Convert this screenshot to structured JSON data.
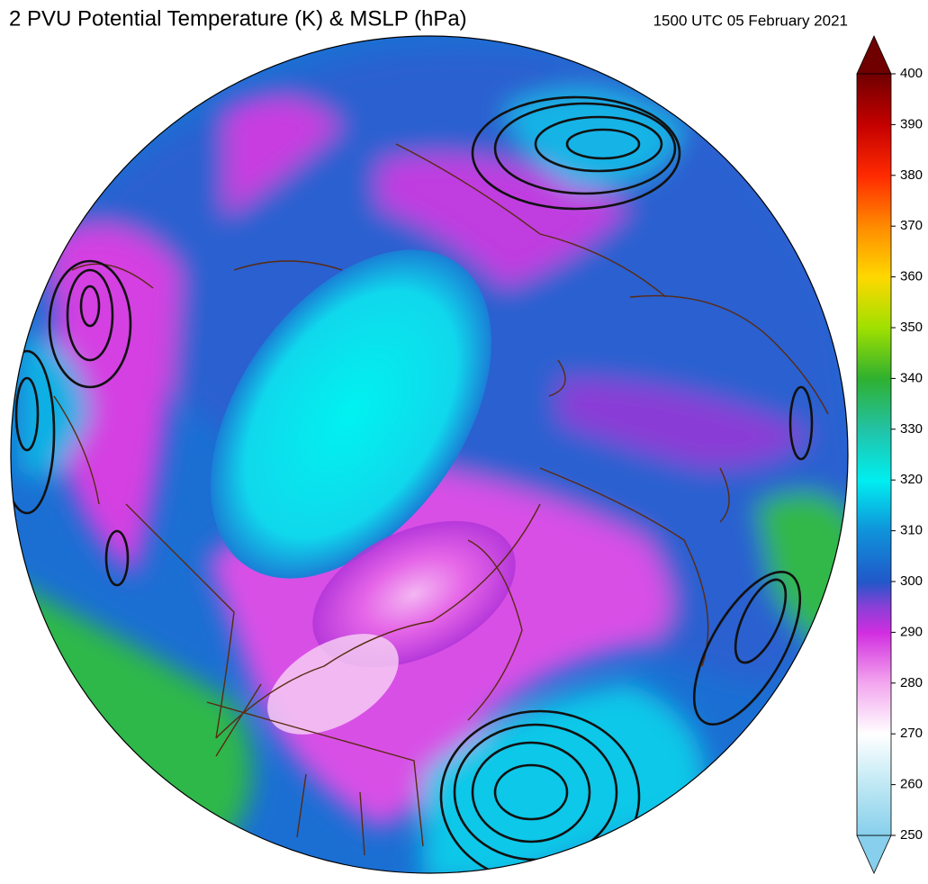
{
  "title": "2 PVU Potential Temperature (K) & MSLP (hPa)",
  "timestamp": "1500 UTC 05 February 2021",
  "colorbar": {
    "lim": [
      250,
      400
    ],
    "ticks": [
      250,
      260,
      270,
      280,
      290,
      300,
      310,
      320,
      330,
      340,
      350,
      360,
      370,
      380,
      390,
      400
    ]
  }
}
